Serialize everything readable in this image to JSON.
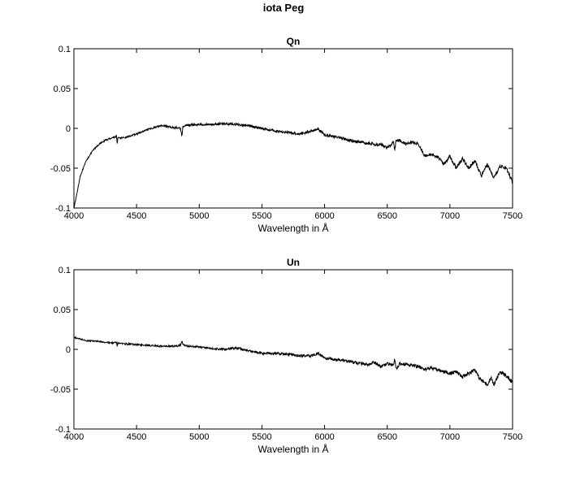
{
  "figure": {
    "title": "iota Peg"
  },
  "colors": {
    "line": "#000000",
    "axes": "#000000",
    "background": "#ffffff"
  },
  "chart_data": [
    {
      "type": "line",
      "title": "Qn",
      "xlabel": "Wavelength in Å",
      "ylabel": "",
      "xlim": [
        4000,
        7500
      ],
      "ylim": [
        -0.1,
        0.1
      ],
      "xticks": [
        "4000",
        "4500",
        "5000",
        "5500",
        "6000",
        "6500",
        "7000",
        "7500"
      ],
      "yticks": [
        "0.1",
        "0.05",
        "0",
        "-0.05",
        "-0.1"
      ],
      "grid": false,
      "x": [
        4000,
        4020,
        4050,
        4100,
        4150,
        4200,
        4250,
        4300,
        4340,
        4345,
        4350,
        4400,
        4500,
        4600,
        4700,
        4750,
        4800,
        4850,
        4861,
        4870,
        4900,
        5000,
        5100,
        5200,
        5300,
        5400,
        5500,
        5600,
        5700,
        5800,
        5900,
        5950,
        6000,
        6100,
        6200,
        6300,
        6400,
        6450,
        6500,
        6550,
        6560,
        6570,
        6600,
        6650,
        6700,
        6750,
        6800,
        6850,
        6900,
        6950,
        7000,
        7050,
        7100,
        7150,
        7200,
        7250,
        7300,
        7350,
        7400,
        7450,
        7500
      ],
      "y": [
        -0.1,
        -0.085,
        -0.06,
        -0.04,
        -0.028,
        -0.02,
        -0.015,
        -0.012,
        -0.01,
        -0.019,
        -0.012,
        -0.012,
        -0.007,
        -0.001,
        0.004,
        0.002,
        0.001,
        0.0,
        -0.009,
        0.002,
        0.004,
        0.005,
        0.005,
        0.006,
        0.005,
        0.003,
        0.0,
        -0.003,
        -0.005,
        -0.007,
        -0.003,
        -0.001,
        -0.008,
        -0.011,
        -0.015,
        -0.018,
        -0.02,
        -0.02,
        -0.025,
        -0.017,
        -0.028,
        -0.015,
        -0.015,
        -0.02,
        -0.017,
        -0.02,
        -0.035,
        -0.033,
        -0.035,
        -0.045,
        -0.035,
        -0.05,
        -0.038,
        -0.05,
        -0.04,
        -0.06,
        -0.045,
        -0.062,
        -0.047,
        -0.05,
        -0.068
      ]
    },
    {
      "type": "line",
      "title": "Un",
      "xlabel": "Wavelength in Å",
      "ylabel": "",
      "xlim": [
        4000,
        7500
      ],
      "ylim": [
        -0.1,
        0.1
      ],
      "xticks": [
        "4000",
        "4500",
        "5000",
        "5500",
        "6000",
        "6500",
        "7000",
        "7500"
      ],
      "yticks": [
        "0.1",
        "0.05",
        "0",
        "-0.05",
        "-0.1"
      ],
      "grid": false,
      "x": [
        4000,
        4050,
        4100,
        4200,
        4300,
        4340,
        4345,
        4350,
        4400,
        4500,
        4600,
        4700,
        4800,
        4850,
        4861,
        4870,
        4900,
        5000,
        5100,
        5200,
        5300,
        5400,
        5500,
        5600,
        5700,
        5800,
        5900,
        5950,
        6000,
        6050,
        6100,
        6200,
        6300,
        6350,
        6400,
        6450,
        6500,
        6550,
        6560,
        6570,
        6600,
        6700,
        6750,
        6800,
        6850,
        6900,
        6950,
        7000,
        7050,
        7100,
        7150,
        7200,
        7230,
        7260,
        7300,
        7330,
        7350,
        7400,
        7450,
        7500
      ],
      "y": [
        0.015,
        0.013,
        0.011,
        0.01,
        0.008,
        0.009,
        0.003,
        0.008,
        0.007,
        0.006,
        0.005,
        0.004,
        0.004,
        0.005,
        0.011,
        0.006,
        0.004,
        0.003,
        0.001,
        0.0,
        0.002,
        -0.002,
        -0.005,
        -0.005,
        -0.006,
        -0.008,
        -0.008,
        -0.005,
        -0.011,
        -0.012,
        -0.013,
        -0.015,
        -0.018,
        -0.02,
        -0.016,
        -0.022,
        -0.018,
        -0.02,
        -0.012,
        -0.025,
        -0.018,
        -0.02,
        -0.022,
        -0.025,
        -0.023,
        -0.026,
        -0.028,
        -0.03,
        -0.028,
        -0.035,
        -0.03,
        -0.025,
        -0.035,
        -0.04,
        -0.044,
        -0.035,
        -0.045,
        -0.028,
        -0.033,
        -0.042
      ]
    }
  ]
}
